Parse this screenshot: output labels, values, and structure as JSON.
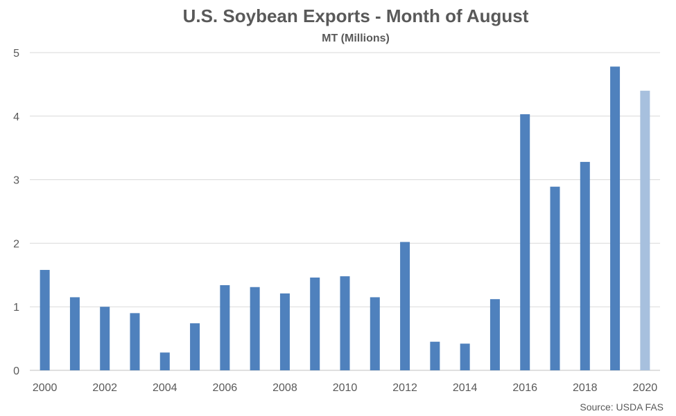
{
  "chart_data": {
    "type": "bar",
    "title": "U.S. Soybean Exports - Month of August",
    "subtitle": "MT (Millions)",
    "xlabel": "",
    "ylabel": "",
    "source": "Source: USDA FAS",
    "categories": [
      "2000",
      "2001",
      "2002",
      "2003",
      "2004",
      "2005",
      "2006",
      "2007",
      "2008",
      "2009",
      "2010",
      "2011",
      "2012",
      "2013",
      "2014",
      "2015",
      "2016",
      "2017",
      "2018",
      "2019",
      "2020"
    ],
    "x_tick_labels": [
      "2000",
      "2002",
      "2004",
      "2006",
      "2008",
      "2010",
      "2012",
      "2014",
      "2016",
      "2018",
      "2020"
    ],
    "values": [
      1.58,
      1.15,
      1.0,
      0.9,
      0.28,
      0.74,
      1.34,
      1.31,
      1.21,
      1.46,
      1.48,
      1.15,
      2.02,
      0.45,
      0.42,
      1.12,
      4.03,
      2.89,
      3.28,
      4.78,
      4.4
    ],
    "ylim": [
      0,
      5
    ],
    "y_ticks": [
      0,
      1,
      2,
      3,
      4,
      5
    ],
    "grid": true,
    "colors": {
      "bar": "#4f81bd",
      "bar_highlight": "#a7c0de",
      "grid": "#d9d9d9",
      "text": "#595959"
    },
    "highlight_categories": [
      "2020"
    ]
  }
}
